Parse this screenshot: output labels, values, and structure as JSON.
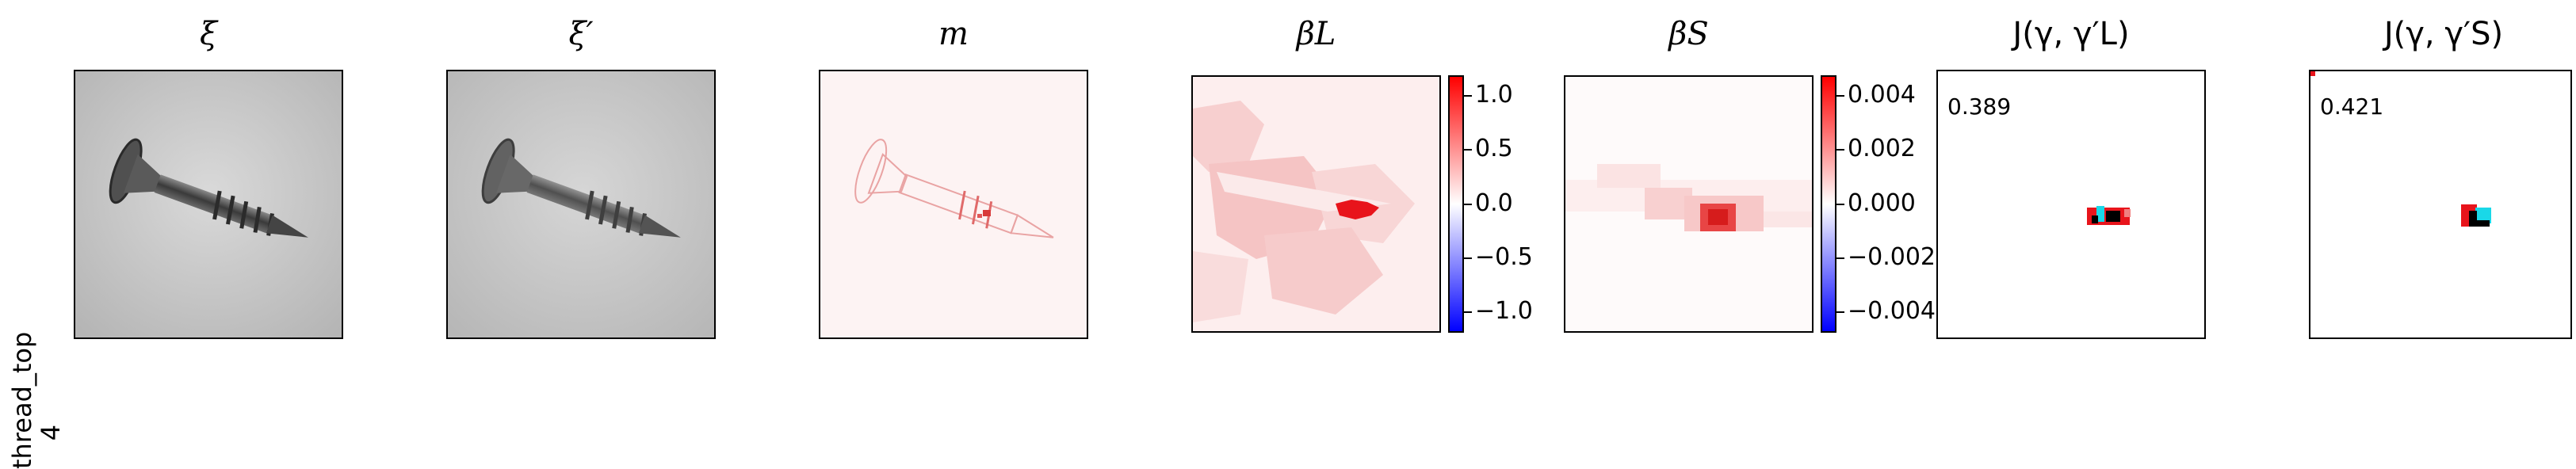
{
  "row": {
    "line1": "thread_top",
    "line2": "4"
  },
  "titles": {
    "xi": "ξ",
    "xi_prime": "ξ′",
    "m": "m",
    "beta_l": "βL",
    "beta_s": "βS",
    "j_l": "J(γ, γ′L)",
    "j_s": "J(γ, γ′S)"
  },
  "colorbar_l": {
    "ticks": [
      "1.0",
      "0.5",
      "0.0",
      "−0.5",
      "−1.0"
    ]
  },
  "colorbar_s": {
    "ticks": [
      "0.004",
      "0.002",
      "0.000",
      "−0.002",
      "−0.004"
    ]
  },
  "scores": {
    "j_l": "0.389",
    "j_s": "0.421"
  },
  "colors": {
    "positive": "#e8141b",
    "negative": "#1010e8",
    "cyan": "#19d8e8"
  }
}
